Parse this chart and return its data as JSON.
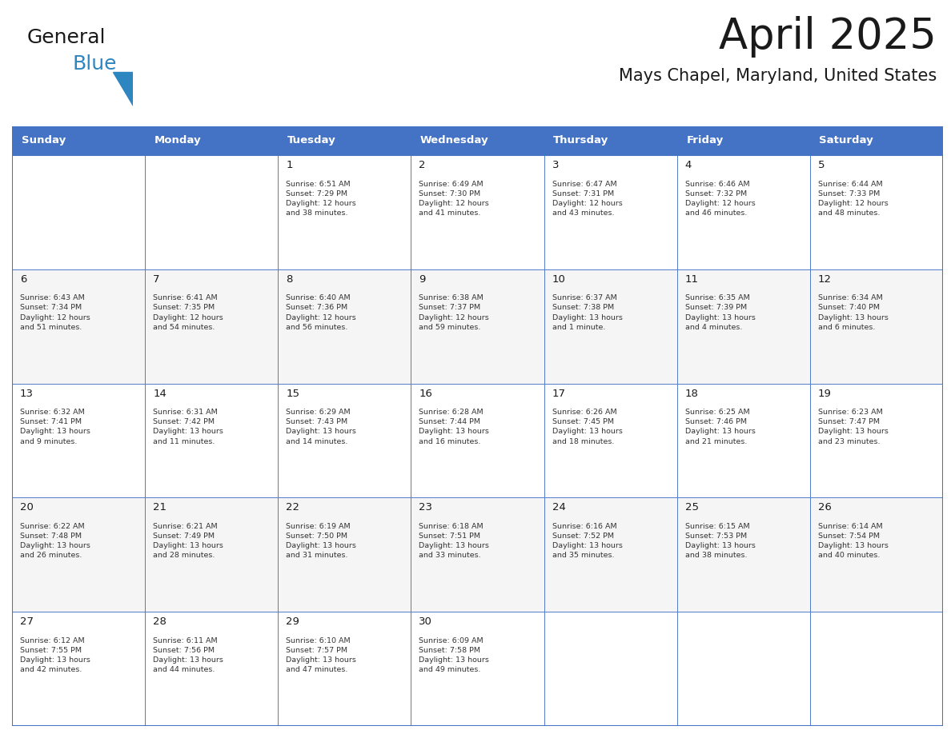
{
  "title": "April 2025",
  "subtitle": "Mays Chapel, Maryland, United States",
  "header_bg": "#4472C4",
  "header_text": "#FFFFFF",
  "border_color": "#4472C4",
  "text_color": "#1a1a1a",
  "info_color": "#333333",
  "day_names": [
    "Sunday",
    "Monday",
    "Tuesday",
    "Wednesday",
    "Thursday",
    "Friday",
    "Saturday"
  ],
  "weeks": [
    [
      {
        "day": "",
        "info": ""
      },
      {
        "day": "",
        "info": ""
      },
      {
        "day": "1",
        "info": "Sunrise: 6:51 AM\nSunset: 7:29 PM\nDaylight: 12 hours\nand 38 minutes."
      },
      {
        "day": "2",
        "info": "Sunrise: 6:49 AM\nSunset: 7:30 PM\nDaylight: 12 hours\nand 41 minutes."
      },
      {
        "day": "3",
        "info": "Sunrise: 6:47 AM\nSunset: 7:31 PM\nDaylight: 12 hours\nand 43 minutes."
      },
      {
        "day": "4",
        "info": "Sunrise: 6:46 AM\nSunset: 7:32 PM\nDaylight: 12 hours\nand 46 minutes."
      },
      {
        "day": "5",
        "info": "Sunrise: 6:44 AM\nSunset: 7:33 PM\nDaylight: 12 hours\nand 48 minutes."
      }
    ],
    [
      {
        "day": "6",
        "info": "Sunrise: 6:43 AM\nSunset: 7:34 PM\nDaylight: 12 hours\nand 51 minutes."
      },
      {
        "day": "7",
        "info": "Sunrise: 6:41 AM\nSunset: 7:35 PM\nDaylight: 12 hours\nand 54 minutes."
      },
      {
        "day": "8",
        "info": "Sunrise: 6:40 AM\nSunset: 7:36 PM\nDaylight: 12 hours\nand 56 minutes."
      },
      {
        "day": "9",
        "info": "Sunrise: 6:38 AM\nSunset: 7:37 PM\nDaylight: 12 hours\nand 59 minutes."
      },
      {
        "day": "10",
        "info": "Sunrise: 6:37 AM\nSunset: 7:38 PM\nDaylight: 13 hours\nand 1 minute."
      },
      {
        "day": "11",
        "info": "Sunrise: 6:35 AM\nSunset: 7:39 PM\nDaylight: 13 hours\nand 4 minutes."
      },
      {
        "day": "12",
        "info": "Sunrise: 6:34 AM\nSunset: 7:40 PM\nDaylight: 13 hours\nand 6 minutes."
      }
    ],
    [
      {
        "day": "13",
        "info": "Sunrise: 6:32 AM\nSunset: 7:41 PM\nDaylight: 13 hours\nand 9 minutes."
      },
      {
        "day": "14",
        "info": "Sunrise: 6:31 AM\nSunset: 7:42 PM\nDaylight: 13 hours\nand 11 minutes."
      },
      {
        "day": "15",
        "info": "Sunrise: 6:29 AM\nSunset: 7:43 PM\nDaylight: 13 hours\nand 14 minutes."
      },
      {
        "day": "16",
        "info": "Sunrise: 6:28 AM\nSunset: 7:44 PM\nDaylight: 13 hours\nand 16 minutes."
      },
      {
        "day": "17",
        "info": "Sunrise: 6:26 AM\nSunset: 7:45 PM\nDaylight: 13 hours\nand 18 minutes."
      },
      {
        "day": "18",
        "info": "Sunrise: 6:25 AM\nSunset: 7:46 PM\nDaylight: 13 hours\nand 21 minutes."
      },
      {
        "day": "19",
        "info": "Sunrise: 6:23 AM\nSunset: 7:47 PM\nDaylight: 13 hours\nand 23 minutes."
      }
    ],
    [
      {
        "day": "20",
        "info": "Sunrise: 6:22 AM\nSunset: 7:48 PM\nDaylight: 13 hours\nand 26 minutes."
      },
      {
        "day": "21",
        "info": "Sunrise: 6:21 AM\nSunset: 7:49 PM\nDaylight: 13 hours\nand 28 minutes."
      },
      {
        "day": "22",
        "info": "Sunrise: 6:19 AM\nSunset: 7:50 PM\nDaylight: 13 hours\nand 31 minutes."
      },
      {
        "day": "23",
        "info": "Sunrise: 6:18 AM\nSunset: 7:51 PM\nDaylight: 13 hours\nand 33 minutes."
      },
      {
        "day": "24",
        "info": "Sunrise: 6:16 AM\nSunset: 7:52 PM\nDaylight: 13 hours\nand 35 minutes."
      },
      {
        "day": "25",
        "info": "Sunrise: 6:15 AM\nSunset: 7:53 PM\nDaylight: 13 hours\nand 38 minutes."
      },
      {
        "day": "26",
        "info": "Sunrise: 6:14 AM\nSunset: 7:54 PM\nDaylight: 13 hours\nand 40 minutes."
      }
    ],
    [
      {
        "day": "27",
        "info": "Sunrise: 6:12 AM\nSunset: 7:55 PM\nDaylight: 13 hours\nand 42 minutes."
      },
      {
        "day": "28",
        "info": "Sunrise: 6:11 AM\nSunset: 7:56 PM\nDaylight: 13 hours\nand 44 minutes."
      },
      {
        "day": "29",
        "info": "Sunrise: 6:10 AM\nSunset: 7:57 PM\nDaylight: 13 hours\nand 47 minutes."
      },
      {
        "day": "30",
        "info": "Sunrise: 6:09 AM\nSunset: 7:58 PM\nDaylight: 13 hours\nand 49 minutes."
      },
      {
        "day": "",
        "info": ""
      },
      {
        "day": "",
        "info": ""
      },
      {
        "day": "",
        "info": ""
      }
    ]
  ],
  "fig_width": 11.88,
  "fig_height": 9.18,
  "dpi": 100
}
